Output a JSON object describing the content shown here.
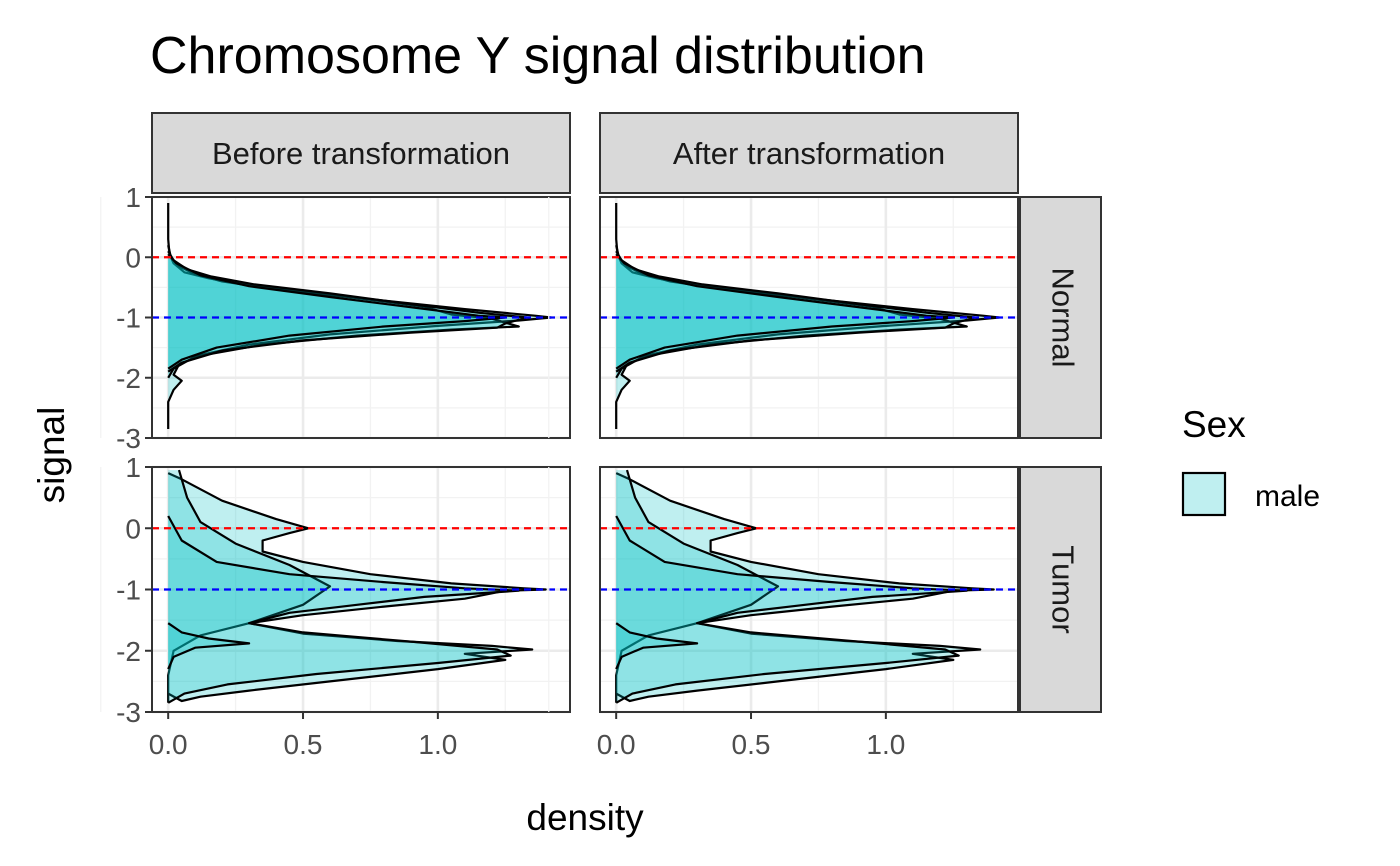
{
  "chart_data": {
    "type": "area",
    "title": "Chromosome Y signal distribution",
    "xlabel": "density",
    "ylabel": "signal",
    "xlim": [
      -0.06,
      1.49
    ],
    "ylim": [
      -3.0,
      1.0
    ],
    "x_ticks": [
      "0.0",
      "0.5",
      "1.0"
    ],
    "x_tick_values": [
      0.0,
      0.5,
      1.0
    ],
    "y_ticks": [
      "1",
      "0",
      "-1",
      "-2",
      "-3"
    ],
    "y_tick_values": [
      1,
      0,
      -1,
      -2,
      -3
    ],
    "column_facets": [
      "Before transformation",
      "After transformation"
    ],
    "row_facets": [
      "Normal",
      "Tumor"
    ],
    "reference_lines": [
      {
        "y": 0,
        "color": "#ff0000",
        "style": "dashed"
      },
      {
        "y": -1,
        "color": "#0000ff",
        "style": "dashed"
      }
    ],
    "fill_color": "#00bfc4",
    "fill_opacity": 0.25,
    "legend": {
      "title": "Sex",
      "entries": [
        "male"
      ],
      "position": "right"
    },
    "grid": true,
    "panels": {
      "Normal": {
        "series": [
          {
            "points": [
              [
                0.0,
                0.9
              ],
              [
                0.0,
                0.3
              ],
              [
                0.005,
                0.05
              ],
              [
                0.02,
                -0.1
              ],
              [
                0.06,
                -0.25
              ],
              [
                0.15,
                -0.35
              ],
              [
                0.28,
                -0.45
              ],
              [
                0.5,
                -0.58
              ],
              [
                0.8,
                -0.72
              ],
              [
                1.1,
                -0.86
              ],
              [
                1.36,
                -0.97
              ],
              [
                1.42,
                -1.0
              ],
              [
                1.3,
                -1.05
              ],
              [
                1.0,
                -1.14
              ],
              [
                0.6,
                -1.28
              ],
              [
                0.3,
                -1.45
              ],
              [
                0.12,
                -1.62
              ],
              [
                0.04,
                -1.78
              ],
              [
                0.02,
                -1.95
              ],
              [
                0.05,
                -2.05
              ],
              [
                0.02,
                -2.2
              ],
              [
                0.0,
                -2.4
              ],
              [
                0.0,
                -2.85
              ]
            ]
          },
          {
            "points": [
              [
                0.0,
                0.2
              ],
              [
                0.01,
                0.0
              ],
              [
                0.04,
                -0.15
              ],
              [
                0.1,
                -0.28
              ],
              [
                0.2,
                -0.4
              ],
              [
                0.38,
                -0.52
              ],
              [
                0.65,
                -0.65
              ],
              [
                0.95,
                -0.82
              ],
              [
                1.05,
                -0.95
              ],
              [
                1.2,
                -1.02
              ],
              [
                1.3,
                -1.15
              ],
              [
                1.05,
                -1.2
              ],
              [
                0.7,
                -1.3
              ],
              [
                0.35,
                -1.45
              ],
              [
                0.1,
                -1.65
              ],
              [
                0.02,
                -1.85
              ],
              [
                0.0,
                -2.0
              ]
            ]
          },
          {
            "points": [
              [
                0.0,
                0.1
              ],
              [
                0.02,
                -0.05
              ],
              [
                0.07,
                -0.2
              ],
              [
                0.16,
                -0.32
              ],
              [
                0.32,
                -0.45
              ],
              [
                0.6,
                -0.6
              ],
              [
                0.9,
                -0.78
              ],
              [
                1.15,
                -0.92
              ],
              [
                1.33,
                -1.0
              ],
              [
                1.25,
                -1.1
              ],
              [
                1.22,
                -1.17
              ],
              [
                0.9,
                -1.25
              ],
              [
                0.5,
                -1.38
              ],
              [
                0.2,
                -1.55
              ],
              [
                0.05,
                -1.75
              ],
              [
                0.0,
                -1.9
              ]
            ]
          },
          {
            "points": [
              [
                0.0,
                0.05
              ],
              [
                0.03,
                -0.1
              ],
              [
                0.12,
                -0.3
              ],
              [
                0.3,
                -0.48
              ],
              [
                0.6,
                -0.66
              ],
              [
                0.92,
                -0.84
              ],
              [
                1.15,
                -0.97
              ],
              [
                1.25,
                -1.0
              ],
              [
                1.1,
                -1.06
              ],
              [
                0.8,
                -1.15
              ],
              [
                0.45,
                -1.3
              ],
              [
                0.18,
                -1.5
              ],
              [
                0.05,
                -1.7
              ],
              [
                0.0,
                -1.85
              ]
            ]
          }
        ]
      },
      "Tumor": {
        "series": [
          {
            "points": [
              [
                0.0,
                0.9
              ],
              [
                0.05,
                0.8
              ],
              [
                0.2,
                0.45
              ],
              [
                0.4,
                0.15
              ],
              [
                0.52,
                0.0
              ],
              [
                0.45,
                -0.08
              ],
              [
                0.35,
                -0.2
              ],
              [
                0.35,
                -0.38
              ],
              [
                0.5,
                -0.55
              ],
              [
                0.75,
                -0.75
              ],
              [
                1.05,
                -0.9
              ],
              [
                1.32,
                -0.98
              ],
              [
                1.4,
                -1.0
              ],
              [
                1.25,
                -1.02
              ],
              [
                1.1,
                -1.15
              ],
              [
                0.8,
                -1.28
              ],
              [
                0.5,
                -1.42
              ],
              [
                0.3,
                -1.55
              ],
              [
                0.12,
                -1.75
              ],
              [
                0.02,
                -2.0
              ],
              [
                0.0,
                -2.4
              ],
              [
                0.0,
                -2.85
              ]
            ]
          },
          {
            "points": [
              [
                0.04,
                0.95
              ],
              [
                0.07,
                0.5
              ],
              [
                0.12,
                0.1
              ],
              [
                0.25,
                -0.25
              ],
              [
                0.45,
                -0.6
              ],
              [
                0.6,
                -0.95
              ],
              [
                0.5,
                -1.25
              ],
              [
                0.3,
                -1.55
              ],
              [
                0.5,
                -1.72
              ],
              [
                0.85,
                -1.84
              ],
              [
                1.2,
                -1.92
              ],
              [
                1.35,
                -1.98
              ],
              [
                1.1,
                -2.05
              ],
              [
                1.25,
                -2.15
              ],
              [
                1.0,
                -2.3
              ],
              [
                0.6,
                -2.5
              ],
              [
                0.3,
                -2.65
              ],
              [
                0.12,
                -2.75
              ],
              [
                0.05,
                -2.82
              ],
              [
                0.0,
                -2.7
              ]
            ]
          },
          {
            "points": [
              [
                0.0,
                0.2
              ],
              [
                0.05,
                -0.2
              ],
              [
                0.18,
                -0.55
              ],
              [
                0.45,
                -0.75
              ],
              [
                0.8,
                -0.88
              ],
              [
                1.1,
                -0.98
              ],
              [
                1.3,
                -1.02
              ],
              [
                0.95,
                -1.12
              ],
              [
                0.7,
                -1.25
              ],
              [
                0.45,
                -1.38
              ],
              [
                0.3,
                -1.55
              ],
              [
                0.5,
                -1.7
              ],
              [
                0.9,
                -1.85
              ],
              [
                1.22,
                -1.98
              ],
              [
                1.27,
                -2.08
              ],
              [
                1.0,
                -2.2
              ],
              [
                0.55,
                -2.38
              ],
              [
                0.22,
                -2.55
              ],
              [
                0.06,
                -2.7
              ],
              [
                0.0,
                -2.85
              ]
            ]
          },
          {
            "points": [
              [
                0.0,
                -1.55
              ],
              [
                0.05,
                -1.7
              ],
              [
                0.15,
                -1.8
              ],
              [
                0.3,
                -1.88
              ],
              [
                0.1,
                -1.95
              ],
              [
                0.02,
                -2.1
              ],
              [
                0.0,
                -2.3
              ]
            ]
          }
        ]
      }
    }
  }
}
